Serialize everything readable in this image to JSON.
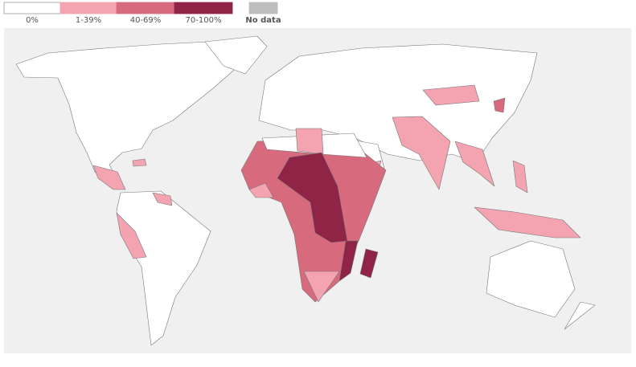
{
  "legend": {
    "items": [
      {
        "label": "0%",
        "color": "#ffffff"
      },
      {
        "label": "1-39%",
        "color": "#f4a3b1"
      },
      {
        "label": "40-69%",
        "color": "#d86a7e"
      },
      {
        "label": "70-100%",
        "color": "#8f2447"
      },
      {
        "label": "No data",
        "color": "#bdbdbd"
      }
    ]
  }
}
